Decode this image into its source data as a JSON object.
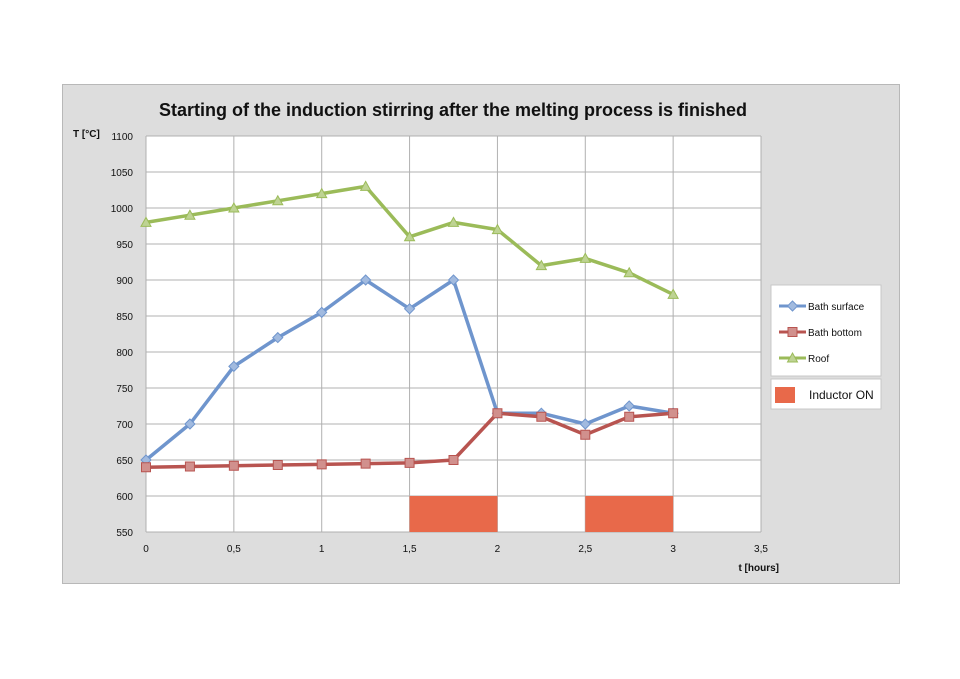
{
  "chart_data": {
    "type": "line",
    "title": "Starting of the induction stirring after the melting process is finished",
    "xlabel": "t [hours]",
    "ylabel": "T [°C]",
    "xlim": [
      0,
      3.5
    ],
    "ylim": [
      550,
      1100
    ],
    "x_ticks": [
      0,
      0.5,
      1,
      1.5,
      2,
      2.5,
      3,
      3.5
    ],
    "x_tick_labels": [
      "0",
      "0,5",
      "1",
      "1,5",
      "2",
      "2,5",
      "3",
      "3,5"
    ],
    "y_ticks": [
      550,
      600,
      650,
      700,
      750,
      800,
      850,
      900,
      950,
      1000,
      1050,
      1100
    ],
    "y_tick_labels": [
      "550",
      "600",
      "650",
      "700",
      "750",
      "800",
      "850",
      "900",
      "950",
      "1000",
      "1050",
      "1100"
    ],
    "grid": true,
    "legend_position": "right",
    "x": [
      0,
      0.25,
      0.5,
      0.75,
      1,
      1.25,
      1.5,
      1.75,
      2,
      2.25,
      2.5,
      2.75,
      3
    ],
    "series": [
      {
        "name": "Bath surface",
        "color": "#6f95cd",
        "marker": "diamond",
        "values": [
          650,
          700,
          780,
          820,
          855,
          900,
          860,
          900,
          715,
          715,
          700,
          725,
          715
        ]
      },
      {
        "name": "Bath bottom",
        "color": "#b85450",
        "marker": "square",
        "values": [
          640,
          641,
          642,
          643,
          644,
          645,
          646,
          650,
          715,
          710,
          685,
          710,
          715
        ]
      },
      {
        "name": "Roof",
        "color": "#9bbb59",
        "marker": "triangle",
        "values": [
          980,
          990,
          1000,
          1010,
          1020,
          1030,
          960,
          980,
          970,
          920,
          930,
          910,
          880
        ]
      }
    ],
    "bars": {
      "name": "Inductor ON",
      "color": "#e8694a",
      "intervals": [
        {
          "x_start": 1.5,
          "x_end": 2,
          "y_top": 600
        },
        {
          "x_start": 2.5,
          "x_end": 3,
          "y_top": 600
        }
      ]
    }
  }
}
